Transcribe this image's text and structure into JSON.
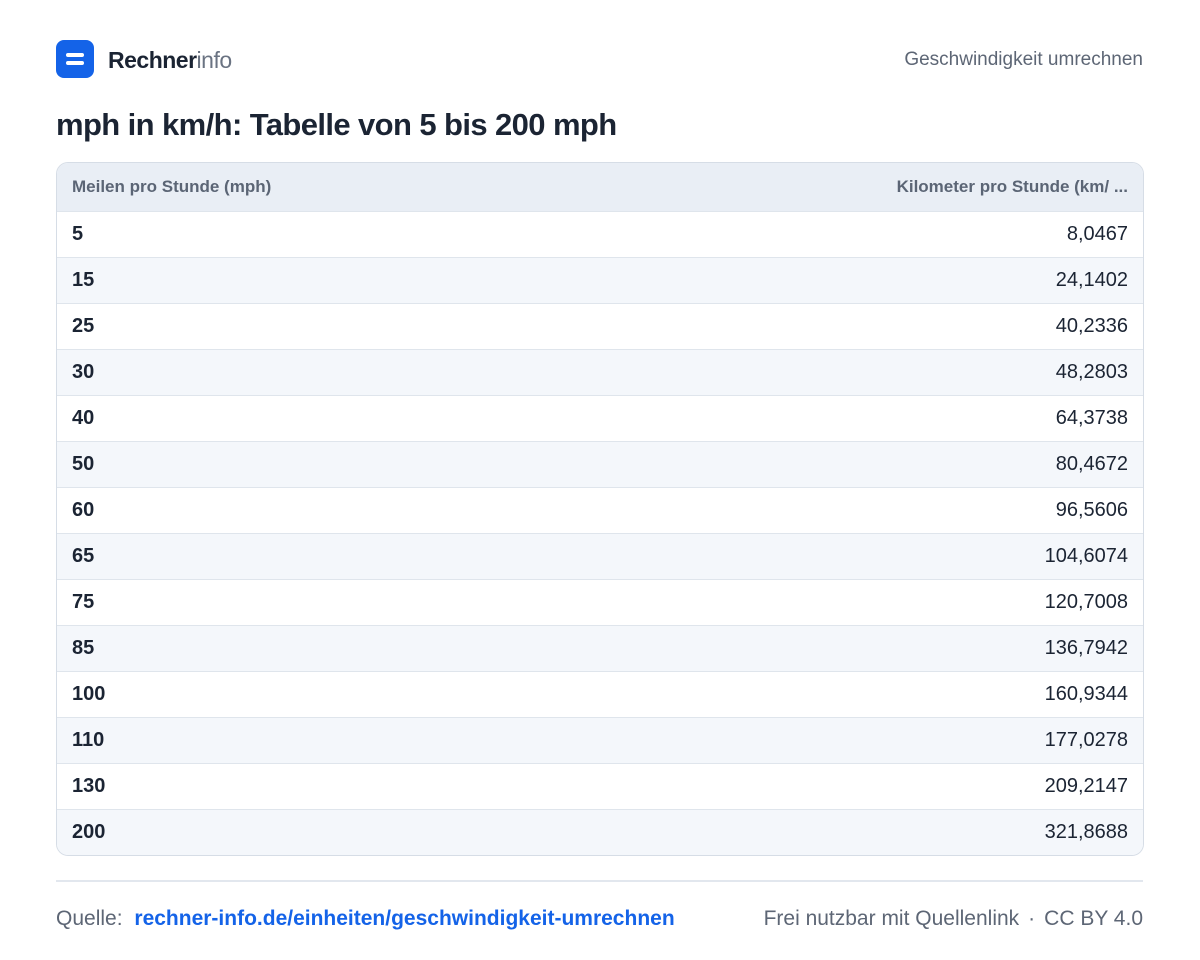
{
  "brand": {
    "name_strong": "Rechner",
    "name_light": "info"
  },
  "header": {
    "category_link": "Geschwindigkeit umrechnen"
  },
  "page": {
    "title": "mph in km/h: Tabelle von 5 bis 200 mph"
  },
  "table": {
    "columns": [
      "Meilen pro Stunde (mph)",
      "Kilometer pro Stunde (km/ ..."
    ],
    "rows": [
      [
        "5",
        "8,0467"
      ],
      [
        "15",
        "24,1402"
      ],
      [
        "25",
        "40,2336"
      ],
      [
        "30",
        "48,2803"
      ],
      [
        "40",
        "64,3738"
      ],
      [
        "50",
        "80,4672"
      ],
      [
        "60",
        "96,5606"
      ],
      [
        "65",
        "104,6074"
      ],
      [
        "75",
        "120,7008"
      ],
      [
        "85",
        "136,7942"
      ],
      [
        "100",
        "160,9344"
      ],
      [
        "110",
        "177,0278"
      ],
      [
        "130",
        "209,2147"
      ],
      [
        "200",
        "321,8688"
      ]
    ]
  },
  "footer": {
    "source_label": "Quelle:",
    "source_url": "rechner-info.de/einheiten/geschwindigkeit-umrechnen",
    "usage_note": "Frei nutzbar mit Quellenlink",
    "separator": "·",
    "license": "CC BY 4.0"
  },
  "colors": {
    "accent": "#1463e8",
    "text": "#1b2433",
    "muted": "#5d6675",
    "header_bg": "#e9eef5",
    "row_alt_bg": "#f4f7fb",
    "border": "#d6dde6"
  }
}
